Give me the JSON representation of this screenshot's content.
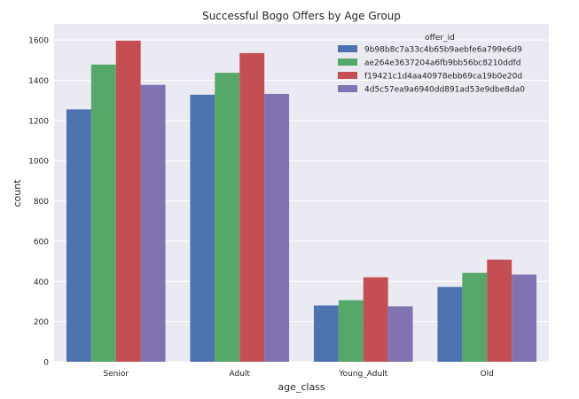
{
  "chart_data": {
    "type": "bar",
    "title": "Successful Bogo Offers by Age Group",
    "xlabel": "age_class",
    "ylabel": "count",
    "categories": [
      "Senior",
      "Adult",
      "Young_Adult",
      "Old"
    ],
    "ylim": [
      0,
      1680
    ],
    "yticks": [
      0,
      200,
      400,
      600,
      800,
      1000,
      1200,
      1400,
      1600
    ],
    "grid": true,
    "legend": {
      "title": "offer_id",
      "placement": "top-right"
    },
    "series": [
      {
        "name": "9b98b8c7a33c4b65b9aebfe6a799e6d9",
        "color": "#4c72b0",
        "values": [
          1255,
          1328,
          280,
          372
        ]
      },
      {
        "name": "ae264e3637204a6fb9bb56bc8210ddfd",
        "color": "#55a868",
        "values": [
          1478,
          1437,
          306,
          442
        ]
      },
      {
        "name": "f19421c1d4aa40978ebb69ca19b0e20d",
        "color": "#c44e52",
        "values": [
          1597,
          1535,
          420,
          508
        ]
      },
      {
        "name": "4d5c57ea9a6940dd891ad53e9dbe8da0",
        "color": "#8172b2",
        "values": [
          1377,
          1332,
          276,
          434
        ]
      }
    ]
  }
}
